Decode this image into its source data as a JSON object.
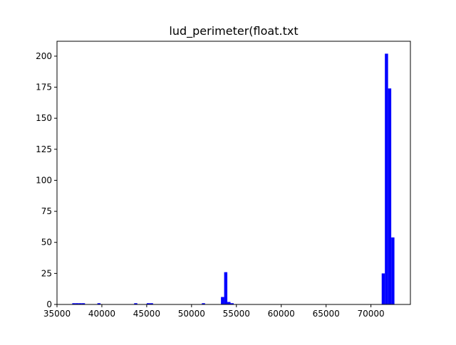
{
  "chart_data": {
    "type": "bar",
    "title": "lud_perimeter(float.txt",
    "xlabel": "",
    "ylabel": "",
    "xlim": [
      35000,
      74400
    ],
    "ylim": [
      0,
      212
    ],
    "bar_color": "#0000ff",
    "bin_width": 355,
    "bins": [
      {
        "x": 36700,
        "count": 1
      },
      {
        "x": 37055,
        "count": 1
      },
      {
        "x": 37410,
        "count": 1
      },
      {
        "x": 37765,
        "count": 1
      },
      {
        "x": 39500,
        "count": 1
      },
      {
        "x": 43600,
        "count": 1
      },
      {
        "x": 45000,
        "count": 1
      },
      {
        "x": 45355,
        "count": 1
      },
      {
        "x": 51150,
        "count": 1
      },
      {
        "x": 53280,
        "count": 6
      },
      {
        "x": 53635,
        "count": 26
      },
      {
        "x": 53990,
        "count": 2
      },
      {
        "x": 54345,
        "count": 1
      },
      {
        "x": 71200,
        "count": 25
      },
      {
        "x": 71555,
        "count": 202
      },
      {
        "x": 71910,
        "count": 174
      },
      {
        "x": 72265,
        "count": 54
      }
    ],
    "x_ticks": [
      "35000",
      "40000",
      "45000",
      "50000",
      "55000",
      "60000",
      "65000",
      "70000"
    ],
    "y_ticks": [
      "0",
      "25",
      "50",
      "75",
      "100",
      "125",
      "150",
      "175",
      "200"
    ],
    "grid": false,
    "legend": "none"
  }
}
